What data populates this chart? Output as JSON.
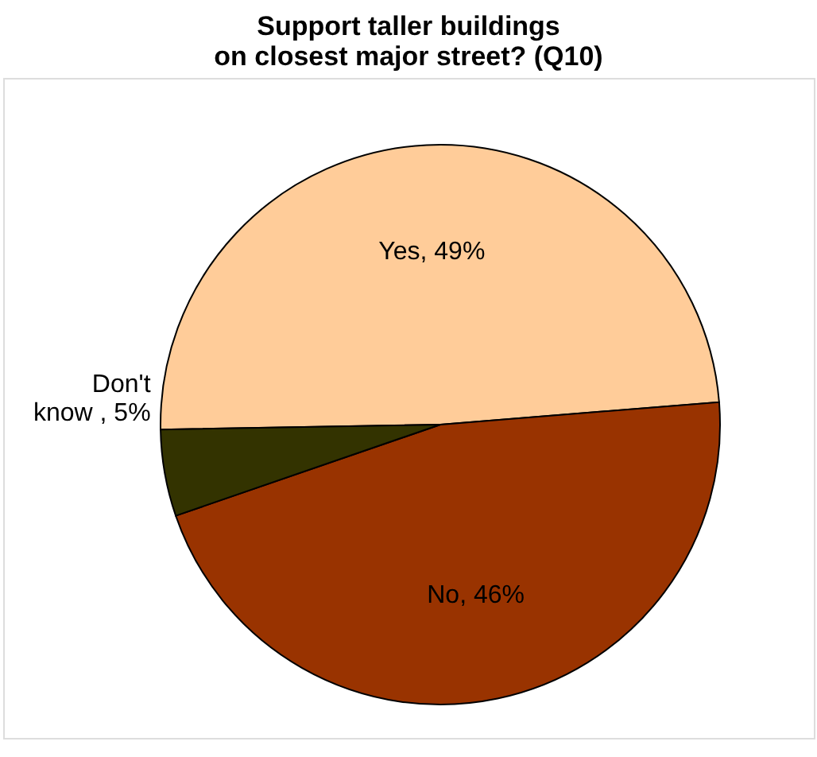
{
  "chart_data": {
    "type": "pie",
    "title": "Support taller buildings on closest major street? (Q10)",
    "categories": [
      "Yes",
      "No",
      "Don't know"
    ],
    "values": [
      49,
      46,
      5
    ],
    "colors": [
      "#ffcc99",
      "#993300",
      "#333300"
    ],
    "value_labels": [
      "49%",
      "46%",
      "5%"
    ],
    "legend": false
  }
}
